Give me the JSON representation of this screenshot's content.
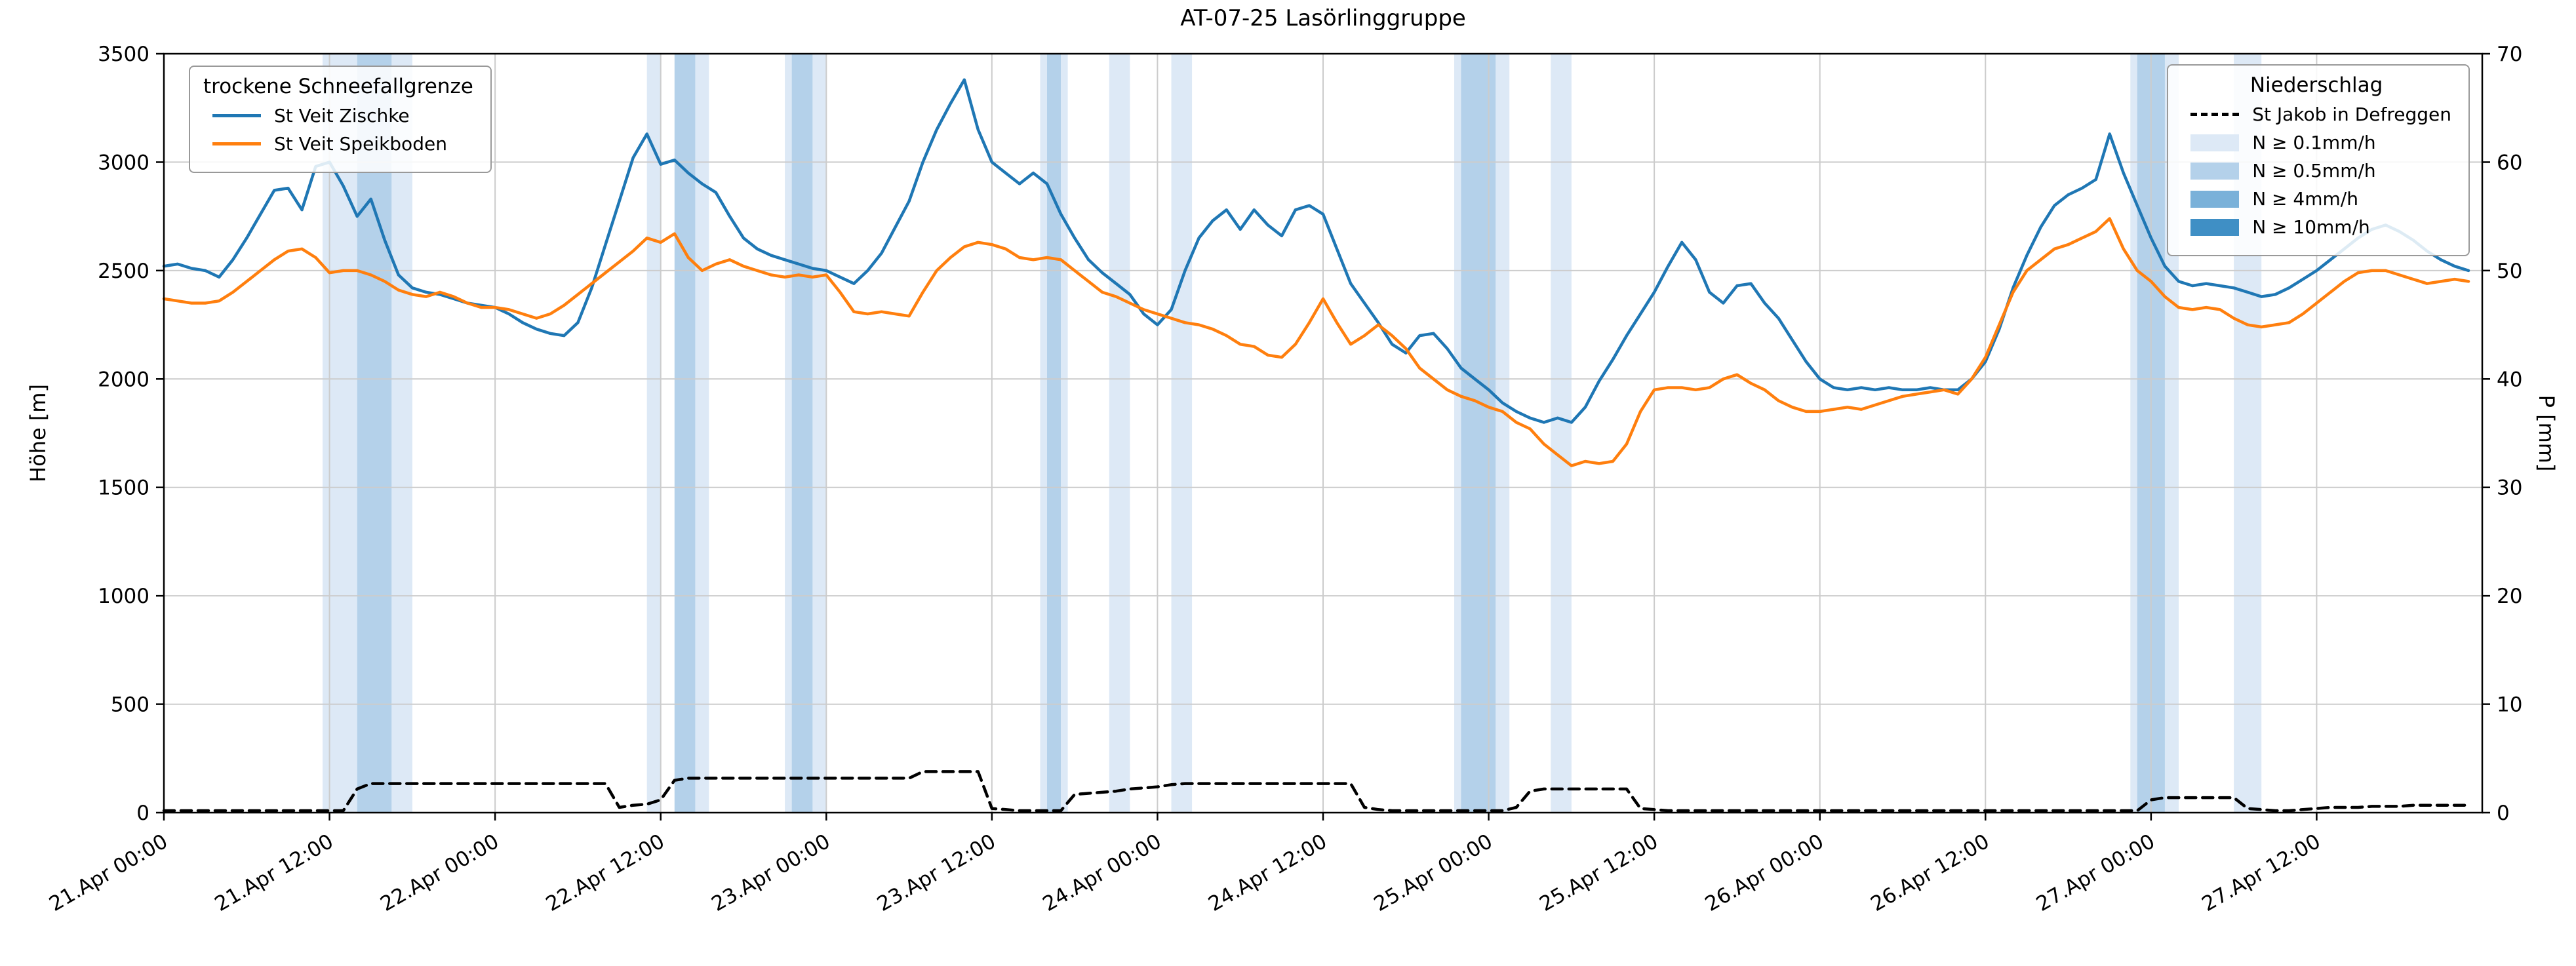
{
  "title": "AT-07-25 Lasörlinggruppe",
  "axes": {
    "y_left_label": "Höhe [m]",
    "y_right_label": "P [mm]",
    "y_left_ticks": [
      0,
      500,
      1000,
      1500,
      2000,
      2500,
      3000,
      3500
    ],
    "y_right_ticks": [
      0,
      10,
      20,
      30,
      40,
      50,
      60,
      70
    ],
    "x_tick_hours": [
      0,
      12,
      24,
      36,
      48,
      60,
      72,
      84,
      96,
      108,
      120,
      132,
      144,
      156
    ],
    "x_tick_labels": [
      "21.Apr 00:00",
      "21.Apr 12:00",
      "22.Apr 00:00",
      "22.Apr 12:00",
      "23.Apr 00:00",
      "23.Apr 12:00",
      "24.Apr 00:00",
      "24.Apr 12:00",
      "25.Apr 00:00",
      "25.Apr 12:00",
      "26.Apr 00:00",
      "26.Apr 12:00",
      "27.Apr 00:00",
      "27.Apr 12:00"
    ]
  },
  "legend_sfg": {
    "title": "trockene Schneefallgrenze",
    "items": [
      {
        "label": "St Veit Zischke",
        "color": "#1f77b4"
      },
      {
        "label": "St Veit Speikboden",
        "color": "#ff7f0e"
      }
    ]
  },
  "legend_precip": {
    "title": "Niederschlag",
    "line_item": {
      "label": "St Jakob in Defreggen",
      "color": "#000000"
    },
    "band_items": [
      {
        "label": "N ≥ 0.1mm/h",
        "color": "#dde9f6"
      },
      {
        "label": "N ≥ 0.5mm/h",
        "color": "#b4d1ea"
      },
      {
        "label": "N ≥ 4mm/h",
        "color": "#7ab1d9"
      },
      {
        "label": "N ≥ 10mm/h",
        "color": "#3f8fc5"
      }
    ]
  },
  "chart_data": {
    "type": "line",
    "title": "AT-07-25 Lasörlinggruppe",
    "x_unit": "hours since 21.Apr 00:00",
    "x_range": [
      0,
      168
    ],
    "ylim_left": [
      0,
      3500
    ],
    "ylim_right": [
      0,
      70
    ],
    "grid": true,
    "band_colors": {
      "0.1": "#dde9f6",
      "0.5": "#b4d1ea",
      "4": "#7ab1d9",
      "10": "#3f8fc5"
    },
    "series": [
      {
        "name": "St Veit Zischke",
        "axis": "left",
        "color": "#1f77b4",
        "style": "solid",
        "values": [
          2520,
          2530,
          2510,
          2500,
          2470,
          2550,
          2650,
          2760,
          2870,
          2880,
          2780,
          2980,
          3000,
          2890,
          2750,
          2830,
          2640,
          2480,
          2420,
          2400,
          2390,
          2370,
          2350,
          2340,
          2330,
          2300,
          2260,
          2230,
          2210,
          2200,
          2260,
          2420,
          2620,
          2820,
          3020,
          3130,
          2990,
          3010,
          2950,
          2900,
          2860,
          2750,
          2650,
          2600,
          2570,
          2550,
          2530,
          2510,
          2500,
          2470,
          2440,
          2500,
          2580,
          2700,
          2820,
          3000,
          3150,
          3270,
          3380,
          3150,
          3000,
          2950,
          2900,
          2950,
          2900,
          2760,
          2650,
          2550,
          2490,
          2440,
          2390,
          2300,
          2250,
          2320,
          2500,
          2650,
          2730,
          2780,
          2690,
          2780,
          2710,
          2660,
          2780,
          2800,
          2760,
          2600,
          2440,
          2350,
          2260,
          2160,
          2120,
          2200,
          2210,
          2140,
          2050,
          2000,
          1950,
          1890,
          1850,
          1820,
          1800,
          1820,
          1800,
          1870,
          1990,
          2090,
          2200,
          2300,
          2400,
          2520,
          2630,
          2550,
          2400,
          2350,
          2430,
          2440,
          2350,
          2280,
          2180,
          2080,
          2000,
          1960,
          1950,
          1960,
          1950,
          1960,
          1950,
          1950,
          1960,
          1950,
          1950,
          2000,
          2080,
          2230,
          2420,
          2570,
          2700,
          2800,
          2850,
          2880,
          2920,
          3130,
          2950,
          2800,
          2650,
          2520,
          2450,
          2430,
          2440,
          2430,
          2420,
          2400,
          2380,
          2390,
          2420,
          2460,
          2500,
          2550,
          2600,
          2650,
          2690,
          2710,
          2680,
          2640,
          2590,
          2550,
          2520,
          2500
        ]
      },
      {
        "name": "St Veit Speikboden",
        "axis": "left",
        "color": "#ff7f0e",
        "style": "solid",
        "values": [
          2370,
          2360,
          2350,
          2350,
          2360,
          2400,
          2450,
          2500,
          2550,
          2590,
          2600,
          2560,
          2490,
          2500,
          2500,
          2480,
          2450,
          2410,
          2390,
          2380,
          2400,
          2380,
          2350,
          2330,
          2330,
          2320,
          2300,
          2280,
          2300,
          2340,
          2390,
          2440,
          2490,
          2540,
          2590,
          2650,
          2630,
          2670,
          2560,
          2500,
          2530,
          2550,
          2520,
          2500,
          2480,
          2470,
          2480,
          2470,
          2480,
          2400,
          2310,
          2300,
          2310,
          2300,
          2290,
          2400,
          2500,
          2560,
          2610,
          2630,
          2620,
          2600,
          2560,
          2550,
          2560,
          2550,
          2500,
          2450,
          2400,
          2380,
          2350,
          2320,
          2300,
          2280,
          2260,
          2250,
          2230,
          2200,
          2160,
          2150,
          2110,
          2100,
          2160,
          2260,
          2370,
          2260,
          2160,
          2200,
          2250,
          2200,
          2140,
          2050,
          2000,
          1950,
          1920,
          1900,
          1870,
          1850,
          1800,
          1770,
          1700,
          1650,
          1600,
          1620,
          1610,
          1620,
          1700,
          1850,
          1950,
          1960,
          1960,
          1950,
          1960,
          2000,
          2020,
          1980,
          1950,
          1900,
          1870,
          1850,
          1850,
          1860,
          1870,
          1860,
          1880,
          1900,
          1920,
          1930,
          1940,
          1950,
          1930,
          2000,
          2100,
          2250,
          2400,
          2500,
          2550,
          2600,
          2620,
          2650,
          2680,
          2740,
          2600,
          2500,
          2450,
          2380,
          2330,
          2320,
          2330,
          2320,
          2280,
          2250,
          2240,
          2250,
          2260,
          2300,
          2350,
          2400,
          2450,
          2490,
          2500,
          2500,
          2480,
          2460,
          2440,
          2450,
          2460,
          2450
        ]
      },
      {
        "name": "St Jakob in Defreggen",
        "axis": "right",
        "color": "#000000",
        "style": "dashed",
        "values": [
          0,
          0,
          0,
          0,
          0,
          0,
          0,
          0,
          0,
          0,
          0,
          0,
          0,
          0,
          2.0,
          2.5,
          2.5,
          2.5,
          2.5,
          2.5,
          2.5,
          2.5,
          2.5,
          2.5,
          2.5,
          2.5,
          2.5,
          2.5,
          2.5,
          2.5,
          2.5,
          2.5,
          2.5,
          0.3,
          0.5,
          0.6,
          1.0,
          2.8,
          3.0,
          3.0,
          3.0,
          3.0,
          3.0,
          3.0,
          3.0,
          3.0,
          3.0,
          3.0,
          3.0,
          3.0,
          3.0,
          3.0,
          3.0,
          3.0,
          3.0,
          3.6,
          3.6,
          3.6,
          3.6,
          3.6,
          0.2,
          0.1,
          0,
          0,
          0,
          0,
          1.5,
          1.6,
          1.7,
          1.8,
          2.0,
          2.1,
          2.2,
          2.4,
          2.5,
          2.5,
          2.5,
          2.5,
          2.5,
          2.5,
          2.5,
          2.5,
          2.5,
          2.5,
          2.5,
          2.5,
          2.5,
          0.3,
          0.1,
          0,
          0,
          0,
          0,
          0,
          0,
          0,
          0,
          0,
          0.3,
          1.8,
          2.0,
          2.0,
          2.0,
          2.0,
          2.0,
          2.0,
          2.0,
          0.2,
          0.1,
          0,
          0,
          0,
          0,
          0,
          0,
          0,
          0,
          0,
          0,
          0,
          0,
          0,
          0,
          0,
          0,
          0,
          0,
          0,
          0,
          0,
          0,
          0,
          0,
          0,
          0,
          0,
          0,
          0,
          0,
          0,
          0,
          0,
          0,
          0,
          1.0,
          1.2,
          1.2,
          1.2,
          1.2,
          1.2,
          1.2,
          0.2,
          0.1,
          0,
          0,
          0.1,
          0.2,
          0.3,
          0.3,
          0.3,
          0.4,
          0.4,
          0.4,
          0.5,
          0.5,
          0.5,
          0.5,
          0.5
        ]
      }
    ],
    "precip_bands": [
      {
        "start": 11.5,
        "end": 14,
        "level": "0.1"
      },
      {
        "start": 14,
        "end": 16.5,
        "level": "0.5"
      },
      {
        "start": 16.5,
        "end": 18,
        "level": "0.1"
      },
      {
        "start": 35,
        "end": 36,
        "level": "0.1"
      },
      {
        "start": 37,
        "end": 38.5,
        "level": "0.5"
      },
      {
        "start": 38.5,
        "end": 39.5,
        "level": "0.1"
      },
      {
        "start": 45,
        "end": 48,
        "level": "0.1"
      },
      {
        "start": 45.5,
        "end": 47,
        "level": "0.5"
      },
      {
        "start": 63.5,
        "end": 65.5,
        "level": "0.1"
      },
      {
        "start": 64,
        "end": 65,
        "level": "0.5"
      },
      {
        "start": 68.5,
        "end": 70,
        "level": "0.1"
      },
      {
        "start": 73,
        "end": 74.5,
        "level": "0.1"
      },
      {
        "start": 93.5,
        "end": 97.5,
        "level": "0.1"
      },
      {
        "start": 94,
        "end": 96.5,
        "level": "0.5"
      },
      {
        "start": 100.5,
        "end": 102,
        "level": "0.1"
      },
      {
        "start": 142.5,
        "end": 146,
        "level": "0.1"
      },
      {
        "start": 143,
        "end": 145,
        "level": "0.5"
      },
      {
        "start": 150,
        "end": 152,
        "level": "0.1"
      }
    ]
  }
}
